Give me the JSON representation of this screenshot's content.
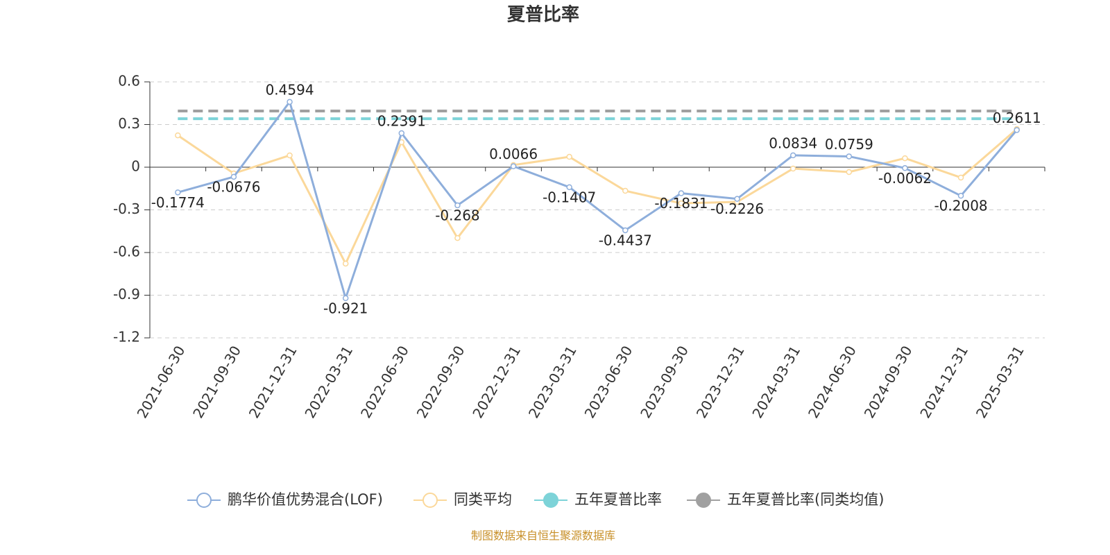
{
  "chart_data": {
    "type": "line",
    "title": "夏普比率",
    "categories": [
      "2021-06-30",
      "2021-09-30",
      "2021-12-31",
      "2022-03-31",
      "2022-06-30",
      "2022-09-30",
      "2022-12-31",
      "2023-03-31",
      "2023-06-30",
      "2023-09-30",
      "2023-12-31",
      "2024-03-31",
      "2024-06-30",
      "2024-09-30",
      "2024-12-31",
      "2025-03-31"
    ],
    "series": [
      {
        "name": "鹏华价值优势混合(LOF)",
        "color": "#8eaedb",
        "values": [
          -0.1774,
          -0.0676,
          0.4594,
          -0.921,
          0.2391,
          -0.268,
          0.0066,
          -0.1407,
          -0.4437,
          -0.1831,
          -0.2226,
          0.0834,
          0.0759,
          -0.0062,
          -0.2008,
          0.2611
        ]
      },
      {
        "name": "同类平均",
        "color": "#fbd89a",
        "values": [
          0.224,
          -0.044,
          0.083,
          -0.678,
          0.176,
          -0.498,
          0.015,
          0.073,
          -0.166,
          -0.254,
          -0.244,
          -0.01,
          -0.034,
          0.063,
          -0.073,
          0.268
        ]
      },
      {
        "name": "五年夏普比率",
        "color": "#7dd3d8",
        "values": [
          0.341,
          0.341,
          0.341,
          0.341,
          0.341,
          0.341,
          0.341,
          0.341,
          0.341,
          0.341,
          0.341,
          0.341,
          0.341,
          0.341,
          0.341,
          0.341
        ]
      },
      {
        "name": "五年夏普比率(同类均值)",
        "color": "#a0a0a0",
        "values": [
          0.395,
          0.395,
          0.395,
          0.395,
          0.395,
          0.395,
          0.395,
          0.395,
          0.395,
          0.395,
          0.395,
          0.395,
          0.395,
          0.395,
          0.395,
          0.395
        ]
      }
    ],
    "ylim": [
      -1.2,
      0.6
    ],
    "yticks": [
      -1.2,
      -0.9,
      -0.6,
      -0.3,
      0,
      0.3,
      0.6
    ],
    "grid": true,
    "legend": "bottom",
    "source": "制图数据来自恒生聚源数据库"
  }
}
